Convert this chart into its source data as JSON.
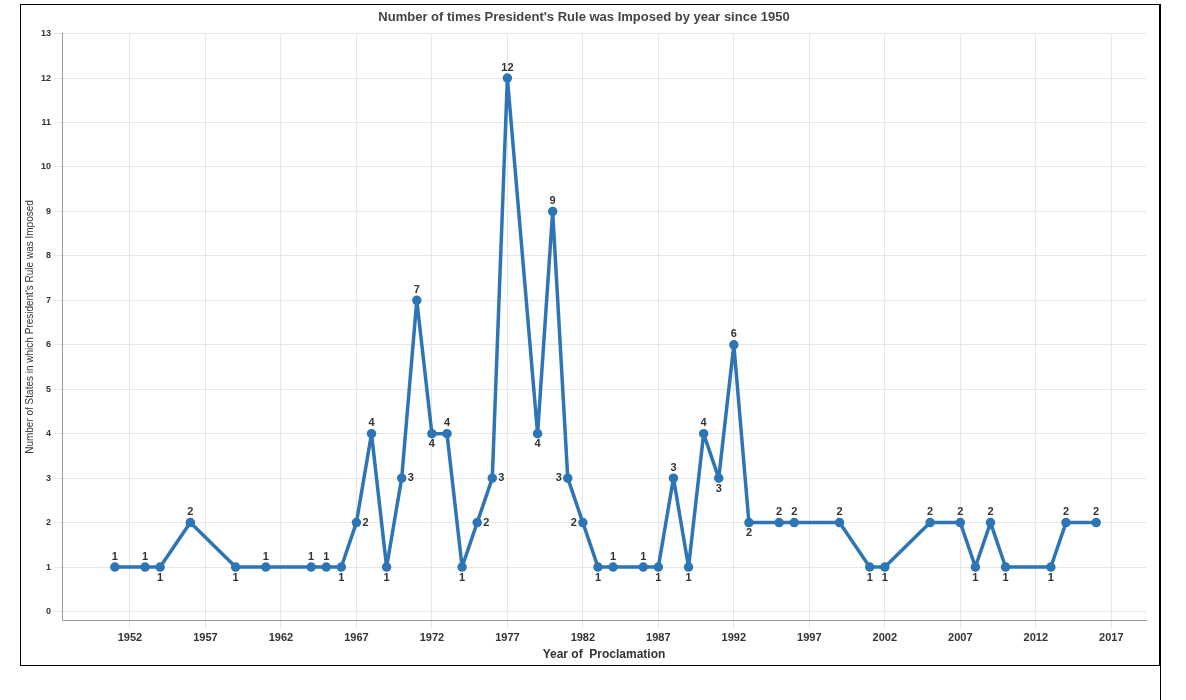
{
  "chart_data": {
    "type": "line",
    "title": "Number of times President's Rule was Imposed by year since 1950",
    "xlabel": "Year of  Proclamation",
    "ylabel": "Number of States in which President's Rule was Imposed",
    "x": [
      1951,
      1953,
      1954,
      1956,
      1959,
      1961,
      1964,
      1965,
      1966,
      1967,
      1968,
      1969,
      1970,
      1971,
      1972,
      1973,
      1974,
      1975,
      1976,
      1977,
      1979,
      1980,
      1981,
      1982,
      1983,
      1984,
      1986,
      1987,
      1988,
      1989,
      1990,
      1991,
      1992,
      1993,
      1995,
      1996,
      1999,
      2001,
      2002,
      2005,
      2007,
      2008,
      2009,
      2010,
      2013,
      2014,
      2016
    ],
    "series": [
      {
        "color": "#2e75b6",
        "values": [
          1,
          1,
          1,
          2,
          1,
          1,
          1,
          1,
          1,
          2,
          4,
          1,
          3,
          7,
          4,
          4,
          1,
          2,
          3,
          12,
          4,
          9,
          3,
          2,
          1,
          1,
          1,
          1,
          3,
          1,
          4,
          3,
          6,
          2,
          2,
          2,
          2,
          1,
          1,
          2,
          2,
          1,
          2,
          1,
          1,
          2,
          2
        ]
      }
    ],
    "xlim": [
      1947.5,
      2019.3
    ],
    "xticks": [
      1952,
      1957,
      1962,
      1967,
      1972,
      1977,
      1982,
      1987,
      1992,
      1997,
      2002,
      2007,
      2012,
      2017
    ],
    "ylim": [
      -0.2,
      13
    ],
    "yticks": [
      0,
      1,
      2,
      3,
      4,
      5,
      6,
      7,
      8,
      9,
      10,
      11,
      12,
      13
    ],
    "grid": true,
    "legend": false,
    "marker": "circle",
    "line_style": "solid",
    "data_labels": true
  }
}
